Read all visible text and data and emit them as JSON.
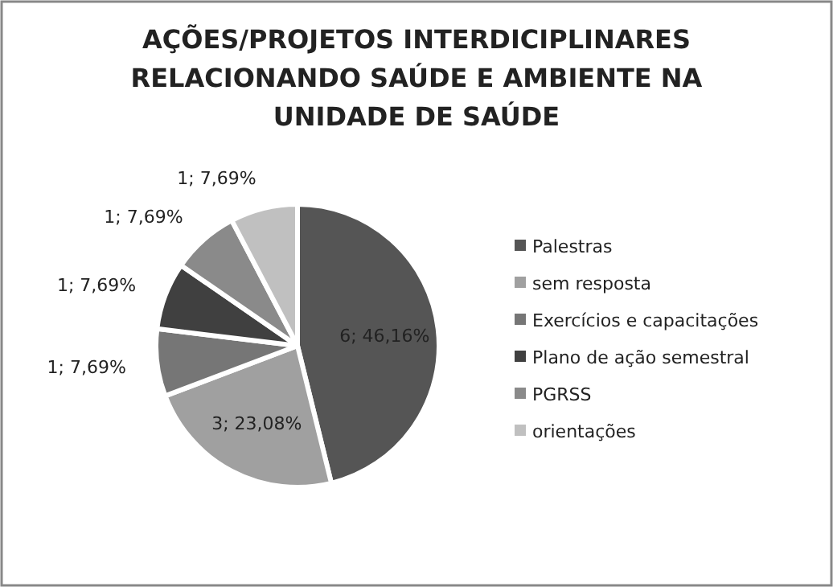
{
  "chart_data": {
    "type": "pie",
    "title": "AÇÕES/PROJETOS INTERDICIPLINARES RELACIONANDO SAÚDE E AMBIENTE NA UNIDADE DE SAÚDE",
    "categories": [
      "Palestras",
      "sem resposta",
      "Exercícios e capacitações",
      "Plano de ação semestral",
      "PGRSS",
      "orientações"
    ],
    "values": [
      6,
      3,
      1,
      1,
      1,
      1
    ],
    "value_labels": [
      "6; 46,16%",
      "3; 23,08%",
      "1; 7,69%",
      "1; 7,69%",
      "1; 7,69%",
      "1; 7,69%"
    ],
    "colors": [
      "#555555",
      "#a0a0a0",
      "#767676",
      "#404040",
      "#8a8a8a",
      "#c0c0c0"
    ],
    "legend": "right"
  }
}
